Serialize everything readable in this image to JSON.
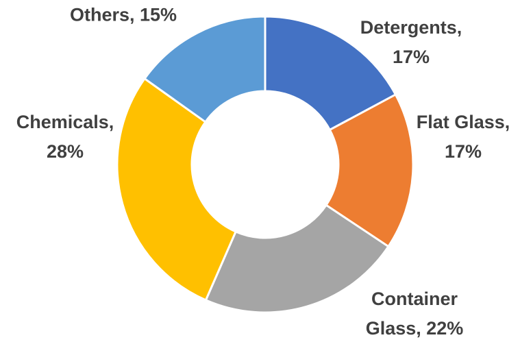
{
  "chart_data": {
    "type": "donut",
    "categories": [
      "Detergents",
      "Flat Glass",
      "Container Glass",
      "Chemicals",
      "Others"
    ],
    "values": [
      17,
      17,
      22,
      28,
      15
    ],
    "value_labels": [
      "Detergents, 17%",
      "Flat Glass, 17%",
      "Container Glass, 22%",
      "Chemicals, 28%",
      "Others, 15%"
    ],
    "colors": [
      "#4472c4",
      "#ed7d31",
      "#a5a5a5",
      "#ffc000",
      "#5b9bd5"
    ]
  }
}
